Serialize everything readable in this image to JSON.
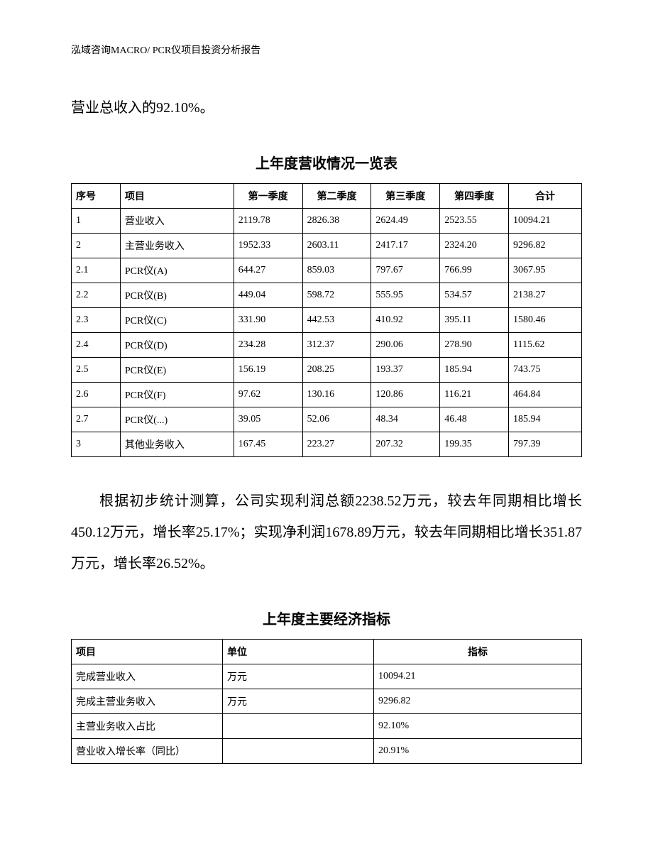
{
  "header": "泓域咨询MACRO/    PCR仪项目投资分析报告",
  "paragraph_top": "营业总收入的92.10%。",
  "table1": {
    "title": "上年度营收情况一览表",
    "columns": [
      "序号",
      "项目",
      "第一季度",
      "第二季度",
      "第三季度",
      "第四季度",
      "合计"
    ],
    "rows": [
      [
        "1",
        "营业收入",
        "2119.78",
        "2826.38",
        "2624.49",
        "2523.55",
        "10094.21"
      ],
      [
        "2",
        "主营业务收入",
        "1952.33",
        "2603.11",
        "2417.17",
        "2324.20",
        "9296.82"
      ],
      [
        "2.1",
        "PCR仪(A)",
        "644.27",
        "859.03",
        "797.67",
        "766.99",
        "3067.95"
      ],
      [
        "2.2",
        "PCR仪(B)",
        "449.04",
        "598.72",
        "555.95",
        "534.57",
        "2138.27"
      ],
      [
        "2.3",
        "PCR仪(C)",
        "331.90",
        "442.53",
        "410.92",
        "395.11",
        "1580.46"
      ],
      [
        "2.4",
        "PCR仪(D)",
        "234.28",
        "312.37",
        "290.06",
        "278.90",
        "1115.62"
      ],
      [
        "2.5",
        "PCR仪(E)",
        "156.19",
        "208.25",
        "193.37",
        "185.94",
        "743.75"
      ],
      [
        "2.6",
        "PCR仪(F)",
        "97.62",
        "130.16",
        "120.86",
        "116.21",
        "464.84"
      ],
      [
        "2.7",
        "PCR仪(...)",
        "39.05",
        "52.06",
        "48.34",
        "46.48",
        "185.94"
      ],
      [
        "3",
        "其他业务收入",
        "167.45",
        "223.27",
        "207.32",
        "199.35",
        "797.39"
      ]
    ]
  },
  "paragraph_mid": "根据初步统计测算，公司实现利润总额2238.52万元，较去年同期相比增长450.12万元，增长率25.17%；实现净利润1678.89万元，较去年同期相比增长351.87万元，增长率26.52%。",
  "table2": {
    "title": "上年度主要经济指标",
    "columns": [
      "项目",
      "单位",
      "指标"
    ],
    "rows": [
      [
        "完成营业收入",
        "万元",
        "10094.21"
      ],
      [
        "完成主营业务收入",
        "万元",
        "9296.82"
      ],
      [
        "主营业务收入占比",
        "",
        "92.10%"
      ],
      [
        "营业收入增长率（同比）",
        "",
        "20.91%"
      ]
    ]
  }
}
